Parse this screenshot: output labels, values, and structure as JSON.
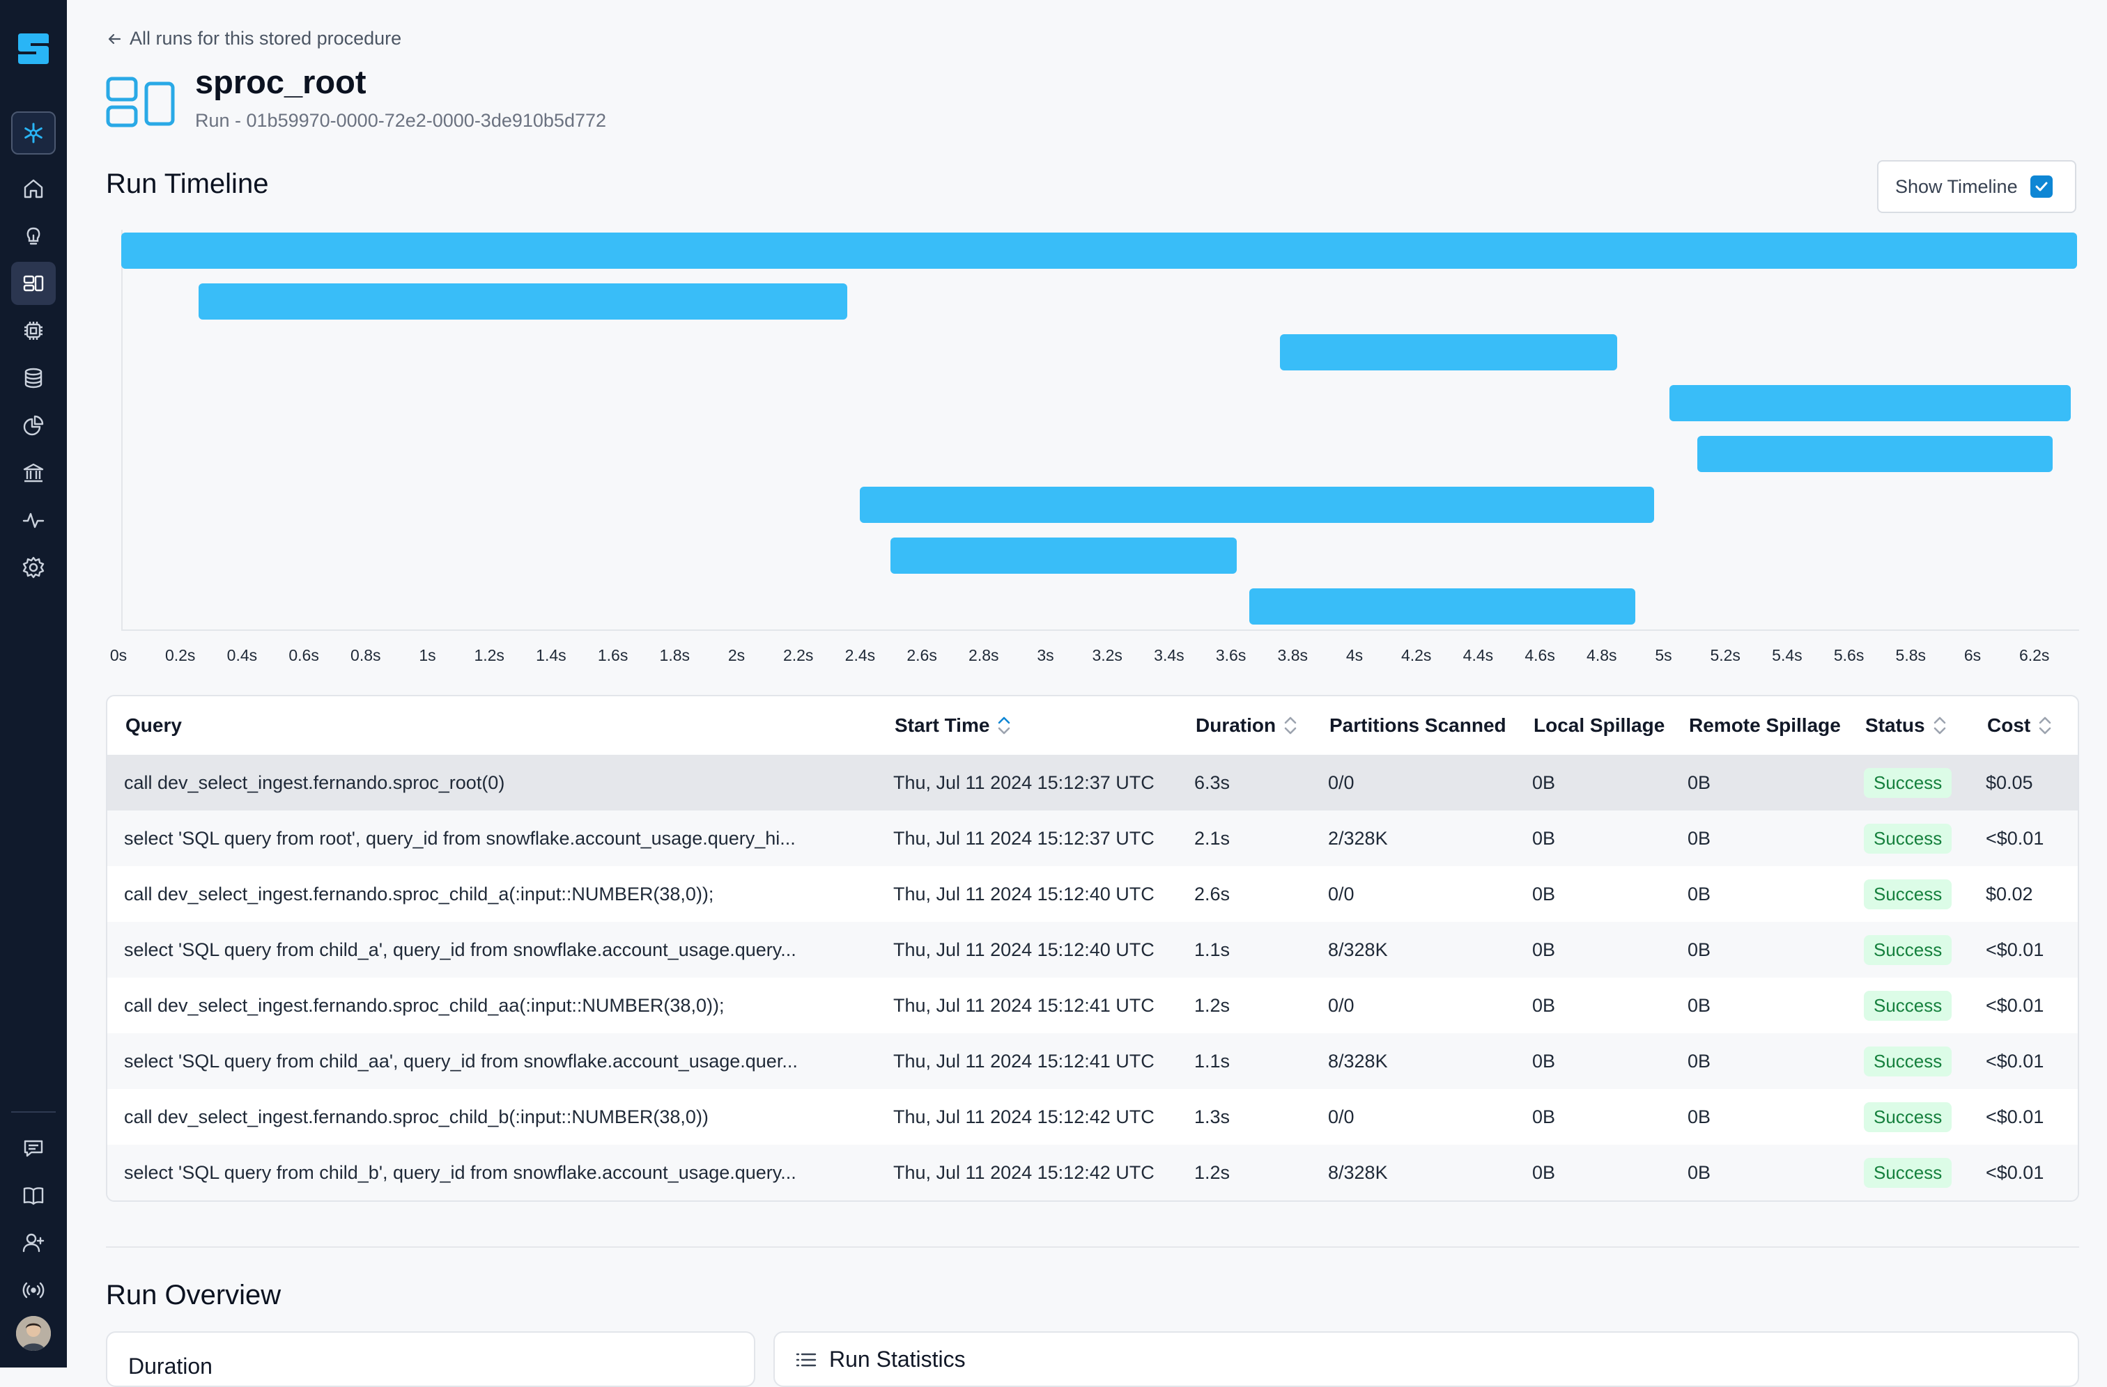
{
  "back_link": {
    "label": "All runs for this stored procedure"
  },
  "procedure": {
    "name": "sproc_root",
    "run_id": "Run - 01b59970-0000-72e2-0000-3de910b5d772"
  },
  "sections": {
    "timeline_title": "Run Timeline",
    "overview_title": "Run Overview"
  },
  "show_timeline": {
    "label": "Show Timeline",
    "checked": true
  },
  "sidebar": {
    "items": [
      "snowflake-icon",
      "home-icon",
      "lightbulb-icon",
      "procedures-icon",
      "chip-icon",
      "database-icon",
      "pie-chart-icon",
      "bank-icon",
      "activity-icon",
      "settings-icon"
    ],
    "footer_items": [
      "chat-icon",
      "book-icon",
      "add-user-icon",
      "broadcast-icon"
    ]
  },
  "timeline": {
    "x_unit": "s",
    "x_max": 6.3,
    "ticks": [
      "0s",
      "0.2s",
      "0.4s",
      "0.6s",
      "0.8s",
      "1s",
      "1.2s",
      "1.4s",
      "1.6s",
      "1.8s",
      "2s",
      "2.2s",
      "2.4s",
      "2.6s",
      "2.8s",
      "3s",
      "3.2s",
      "3.4s",
      "3.6s",
      "3.8s",
      "4s",
      "4.2s",
      "4.4s",
      "4.6s",
      "4.8s",
      "5s",
      "5.2s",
      "5.4s",
      "5.6s",
      "5.8s",
      "6s",
      "6.2s"
    ],
    "bars": [
      {
        "start": 0.0,
        "end": 6.33
      },
      {
        "start": 0.25,
        "end": 2.35
      },
      {
        "start": 3.75,
        "end": 4.84
      },
      {
        "start": 5.01,
        "end": 6.31
      },
      {
        "start": 5.1,
        "end": 6.25
      },
      {
        "start": 2.39,
        "end": 4.96
      },
      {
        "start": 2.49,
        "end": 3.61
      },
      {
        "start": 3.65,
        "end": 4.9
      }
    ]
  },
  "table": {
    "columns": [
      "Query",
      "Start Time",
      "Duration",
      "Partitions Scanned",
      "Local Spillage",
      "Remote Spillage",
      "Status",
      "Cost"
    ],
    "rows": [
      {
        "query": "call dev_select_ingest.fernando.sproc_root(0)",
        "start": "Thu, Jul 11 2024 15:12:37 UTC",
        "duration": "6.3s",
        "partitions": "0/0",
        "local": "0B",
        "remote": "0B",
        "status": "Success",
        "cost": "$0.05"
      },
      {
        "query": "select 'SQL query from root', query_id from snowflake.account_usage.query_hi...",
        "start": "Thu, Jul 11 2024 15:12:37 UTC",
        "duration": "2.1s",
        "partitions": "2/328K",
        "local": "0B",
        "remote": "0B",
        "status": "Success",
        "cost": "<$0.01"
      },
      {
        "query": "call dev_select_ingest.fernando.sproc_child_a(:input::NUMBER(38,0));",
        "start": "Thu, Jul 11 2024 15:12:40 UTC",
        "duration": "2.6s",
        "partitions": "0/0",
        "local": "0B",
        "remote": "0B",
        "status": "Success",
        "cost": "$0.02"
      },
      {
        "query": "select 'SQL query from child_a', query_id from snowflake.account_usage.query...",
        "start": "Thu, Jul 11 2024 15:12:40 UTC",
        "duration": "1.1s",
        "partitions": "8/328K",
        "local": "0B",
        "remote": "0B",
        "status": "Success",
        "cost": "<$0.01"
      },
      {
        "query": "call dev_select_ingest.fernando.sproc_child_aa(:input::NUMBER(38,0));",
        "start": "Thu, Jul 11 2024 15:12:41 UTC",
        "duration": "1.2s",
        "partitions": "0/0",
        "local": "0B",
        "remote": "0B",
        "status": "Success",
        "cost": "<$0.01"
      },
      {
        "query": "select 'SQL query from child_aa', query_id from snowflake.account_usage.quer...",
        "start": "Thu, Jul 11 2024 15:12:41 UTC",
        "duration": "1.1s",
        "partitions": "8/328K",
        "local": "0B",
        "remote": "0B",
        "status": "Success",
        "cost": "<$0.01"
      },
      {
        "query": "call dev_select_ingest.fernando.sproc_child_b(:input::NUMBER(38,0))",
        "start": "Thu, Jul 11 2024 15:12:42 UTC",
        "duration": "1.3s",
        "partitions": "0/0",
        "local": "0B",
        "remote": "0B",
        "status": "Success",
        "cost": "<$0.01"
      },
      {
        "query": "select 'SQL query from child_b', query_id from snowflake.account_usage.query...",
        "start": "Thu, Jul 11 2024 15:12:42 UTC",
        "duration": "1.2s",
        "partitions": "8/328K",
        "local": "0B",
        "remote": "0B",
        "status": "Success",
        "cost": "<$0.01"
      }
    ]
  },
  "panels": {
    "left_title": "Duration",
    "right_title": "Run Statistics"
  },
  "colors": {
    "bar": "#39bdf8",
    "sidebar": "#101a2c",
    "success_bg": "#dcfce7",
    "success_text": "#15803d",
    "accent": "#0e86d4"
  }
}
